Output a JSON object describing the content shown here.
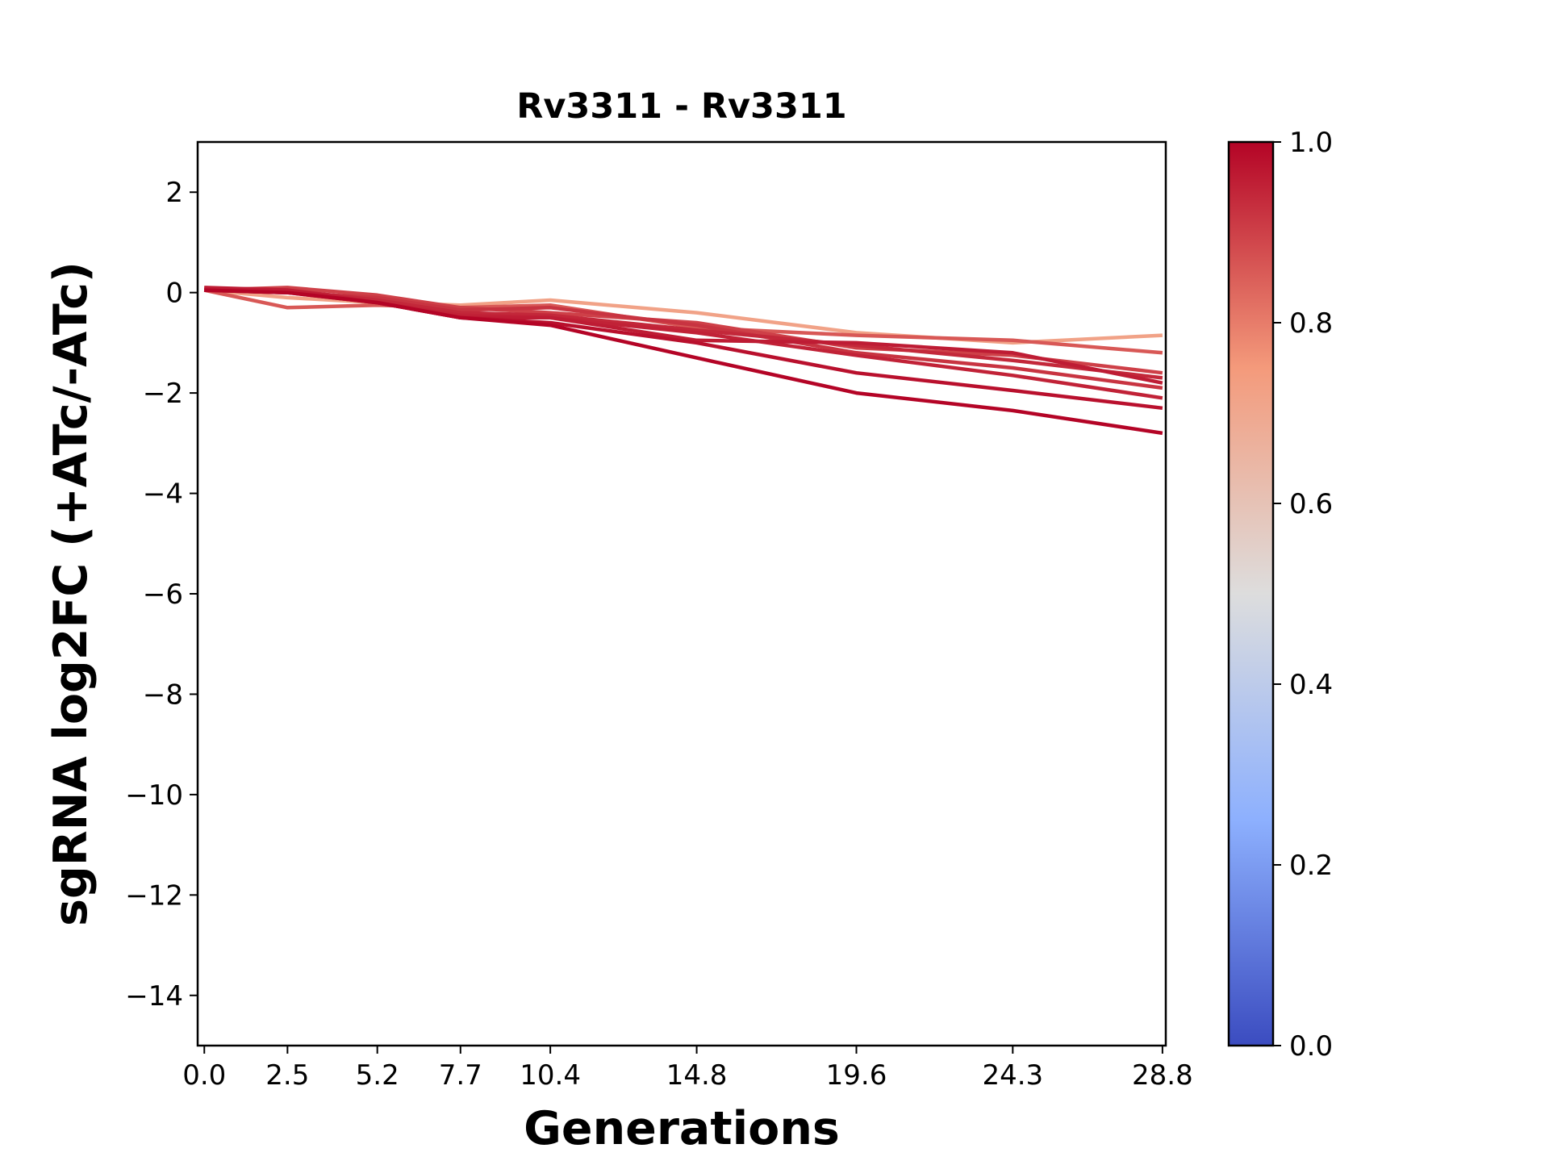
{
  "chart_data": {
    "type": "line",
    "title": "Rv3311 - Rv3311",
    "xlabel": "Generations",
    "ylabel": "sgRNA log2FC (+ATc/-ATc)",
    "x": [
      0.0,
      2.5,
      5.2,
      7.7,
      10.4,
      14.8,
      19.6,
      24.3,
      28.8
    ],
    "x_tick_labels": [
      "0.0",
      "2.5",
      "5.2",
      "7.7",
      "10.4",
      "14.8",
      "19.6",
      "24.3",
      "28.8"
    ],
    "xlim": [
      -0.2,
      28.9
    ],
    "ylim": [
      -15,
      3
    ],
    "y_ticks": [
      2,
      0,
      -2,
      -4,
      -6,
      -8,
      -10,
      -12,
      -14
    ],
    "y_tick_labels": [
      "2",
      "0",
      "−2",
      "−4",
      "−6",
      "−8",
      "−10",
      "−12",
      "−14"
    ],
    "grid": false,
    "colormap": {
      "name": "coolwarm",
      "range": [
        0.0,
        1.0
      ],
      "ticks": [
        0.0,
        0.2,
        0.4,
        0.6,
        0.8,
        1.0
      ],
      "tick_labels": [
        "0.0",
        "0.2",
        "0.4",
        "0.6",
        "0.8",
        "1.0"
      ],
      "stops": [
        {
          "v": 0.0,
          "color": "#3b4cc0"
        },
        {
          "v": 0.25,
          "color": "#8db0fe"
        },
        {
          "v": 0.5,
          "color": "#dddddd"
        },
        {
          "v": 0.75,
          "color": "#f49a7b"
        },
        {
          "v": 1.0,
          "color": "#b40426"
        }
      ]
    },
    "series": [
      {
        "color_value": 0.72,
        "values": [
          0.05,
          -0.1,
          -0.2,
          -0.25,
          -0.15,
          -0.4,
          -0.8,
          -1.0,
          -0.85
        ]
      },
      {
        "color_value": 0.86,
        "values": [
          0.05,
          -0.3,
          -0.25,
          -0.3,
          -0.25,
          -0.7,
          -0.85,
          -0.95,
          -1.2
        ]
      },
      {
        "color_value": 0.9,
        "values": [
          0.05,
          0.1,
          -0.05,
          -0.3,
          -0.4,
          -0.6,
          -1.1,
          -1.25,
          -1.6
        ]
      },
      {
        "color_value": 0.92,
        "values": [
          0.05,
          0.0,
          -0.1,
          -0.35,
          -0.3,
          -0.65,
          -1.2,
          -1.5,
          -1.9
        ]
      },
      {
        "color_value": 0.94,
        "values": [
          0.05,
          0.05,
          -0.15,
          -0.4,
          -0.45,
          -0.75,
          -1.05,
          -1.35,
          -1.7
        ]
      },
      {
        "color_value": 0.95,
        "values": [
          0.08,
          0.05,
          -0.2,
          -0.45,
          -0.5,
          -0.8,
          -1.25,
          -1.65,
          -2.1
        ]
      },
      {
        "color_value": 0.96,
        "values": [
          0.1,
          0.05,
          -0.2,
          -0.5,
          -0.5,
          -0.95,
          -1.0,
          -1.2,
          -1.8
        ]
      },
      {
        "color_value": 0.98,
        "values": [
          0.05,
          0.0,
          -0.2,
          -0.5,
          -0.6,
          -1.0,
          -1.6,
          -1.95,
          -2.3
        ]
      },
      {
        "color_value": 1.0,
        "values": [
          0.05,
          0.0,
          -0.2,
          -0.5,
          -0.65,
          -1.3,
          -2.0,
          -2.35,
          -2.8
        ]
      }
    ]
  }
}
